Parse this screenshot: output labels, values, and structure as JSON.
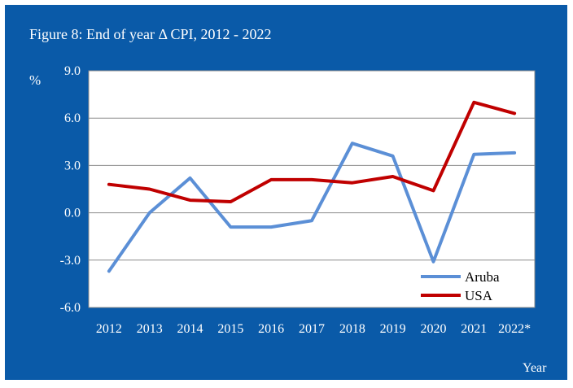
{
  "chart_data": {
    "type": "line",
    "title": "Figure 8: End of year Δ CPI, 2012 - 2022",
    "ylabel": "%",
    "xlabel": "Year",
    "categories": [
      "2012",
      "2013",
      "2014",
      "2015",
      "2016",
      "2017",
      "2018",
      "2019",
      "2020",
      "2021",
      "2022*"
    ],
    "yticks": [
      "9.0",
      "6.0",
      "3.0",
      "0.0",
      "-3.0",
      "-6.0"
    ],
    "ylim": [
      -6,
      9
    ],
    "grid": true,
    "legend_position": "bottom-right",
    "series": [
      {
        "name": "Aruba",
        "color": "#5b8fd6",
        "values": [
          -3.7,
          0.0,
          2.2,
          -0.9,
          -0.9,
          -0.5,
          4.4,
          3.6,
          -3.1,
          3.7,
          3.8
        ]
      },
      {
        "name": "USA",
        "color": "#c00000",
        "values": [
          1.8,
          1.5,
          0.8,
          0.7,
          2.1,
          2.1,
          1.9,
          2.3,
          1.4,
          7.0,
          6.3
        ]
      }
    ]
  }
}
